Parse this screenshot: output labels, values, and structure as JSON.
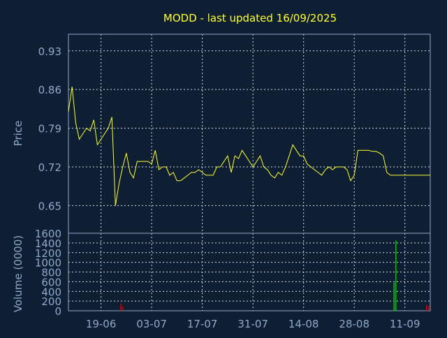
{
  "title": "MODD - last updated 16/09/2025",
  "colors": {
    "background": "#0f1f33",
    "frame": "#8fa6c8",
    "grid": "#d8dde6",
    "axis_text": "#8ea9cc",
    "title": "#ffff33",
    "price_line": "#ffff33",
    "volume_up": "#00cc00",
    "volume_down": "#dd0000"
  },
  "chart_data": [
    {
      "type": "line",
      "name": "price",
      "ylabel": "Price",
      "yticks": [
        "0.93",
        "0.86",
        "0.79",
        "0.72",
        "0.65"
      ],
      "ylim": [
        0.6,
        0.96
      ],
      "xlim": [
        0,
        100
      ],
      "xticks": [
        "19-06",
        "03-07",
        "17-07",
        "31-07",
        "14-08",
        "28-08",
        "11-09"
      ],
      "xtick_positions": [
        9,
        23,
        37,
        51,
        65,
        79,
        93
      ],
      "grid": true,
      "x": [
        0,
        1,
        2,
        3,
        4,
        5,
        6,
        7,
        8,
        9,
        10,
        11,
        12,
        13,
        14,
        15,
        16,
        17,
        18,
        19,
        20,
        21,
        22,
        23,
        24,
        25,
        26,
        27,
        28,
        29,
        30,
        31,
        32,
        33,
        34,
        35,
        36,
        37,
        38,
        39,
        40,
        41,
        42,
        43,
        44,
        45,
        46,
        47,
        48,
        49,
        50,
        51,
        52,
        53,
        54,
        55,
        56,
        57,
        58,
        59,
        60,
        61,
        62,
        63,
        64,
        65,
        66,
        67,
        68,
        69,
        70,
        71,
        72,
        73,
        74,
        75,
        76,
        77,
        78,
        79,
        80,
        81,
        82,
        83,
        84,
        85,
        86,
        87,
        88,
        89,
        90,
        91,
        92,
        93,
        94,
        95,
        96,
        97,
        98,
        99,
        100
      ],
      "values": [
        0.82,
        0.865,
        0.8,
        0.77,
        0.78,
        0.79,
        0.785,
        0.805,
        0.76,
        0.77,
        0.78,
        0.79,
        0.81,
        0.65,
        0.69,
        0.72,
        0.745,
        0.71,
        0.7,
        0.73,
        0.73,
        0.73,
        0.73,
        0.725,
        0.75,
        0.715,
        0.72,
        0.72,
        0.705,
        0.71,
        0.695,
        0.695,
        0.7,
        0.705,
        0.71,
        0.71,
        0.715,
        0.71,
        0.705,
        0.705,
        0.705,
        0.72,
        0.72,
        0.73,
        0.74,
        0.71,
        0.74,
        0.735,
        0.75,
        0.74,
        0.73,
        0.72,
        0.73,
        0.74,
        0.72,
        0.715,
        0.705,
        0.7,
        0.71,
        0.705,
        0.72,
        0.74,
        0.76,
        0.75,
        0.74,
        0.74,
        0.725,
        0.72,
        0.715,
        0.71,
        0.705,
        0.715,
        0.72,
        0.715,
        0.72,
        0.72,
        0.72,
        0.715,
        0.695,
        0.705,
        0.75,
        0.75,
        0.75,
        0.75,
        0.748,
        0.748,
        0.745,
        0.74,
        0.71,
        0.705,
        0.705,
        0.705,
        0.705,
        0.705,
        0.705,
        0.705,
        0.705,
        0.705,
        0.705,
        0.705,
        0.705
      ]
    },
    {
      "type": "bar",
      "name": "volume",
      "ylabel": "Volume (0000)",
      "yticks": [
        "1600",
        "1400",
        "1200",
        "1000",
        "800",
        "600",
        "400",
        "200",
        "0"
      ],
      "ylim": [
        0,
        1600
      ],
      "xlim": [
        0,
        100
      ],
      "grid": true,
      "bars": [
        {
          "x": 14.5,
          "value": 150,
          "dir": "down"
        },
        {
          "x": 15.0,
          "value": 90,
          "dir": "down"
        },
        {
          "x": 90.0,
          "value": 580,
          "dir": "up"
        },
        {
          "x": 90.5,
          "value": 1450,
          "dir": "up"
        },
        {
          "x": 99.0,
          "value": 120,
          "dir": "down"
        },
        {
          "x": 99.6,
          "value": 100,
          "dir": "down"
        }
      ]
    }
  ]
}
